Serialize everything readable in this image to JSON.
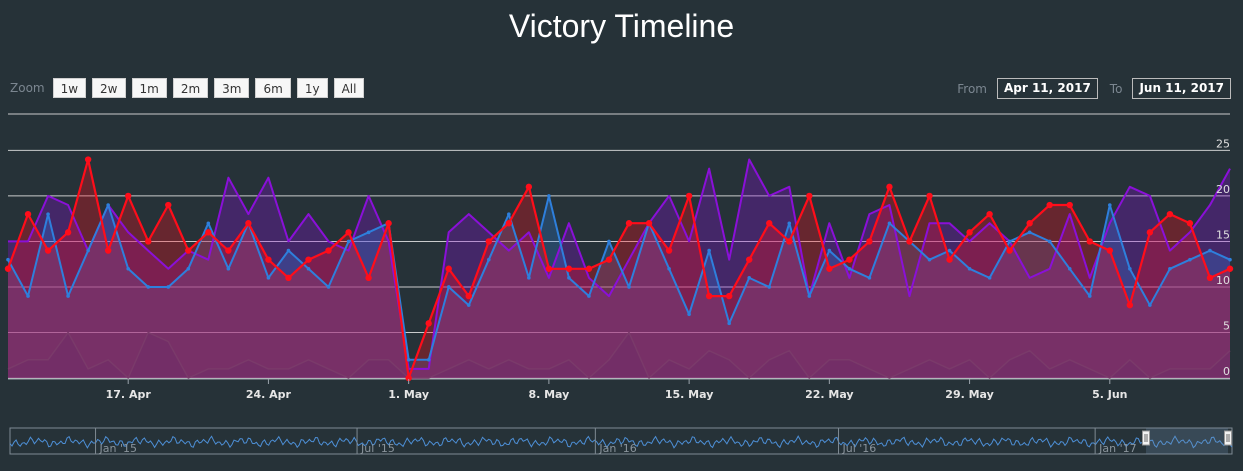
{
  "title": "Victory Timeline",
  "zoom": {
    "label": "Zoom",
    "buttons": [
      "1w",
      "2w",
      "1m",
      "2m",
      "3m",
      "6m",
      "1y",
      "All"
    ]
  },
  "range": {
    "from_label": "From",
    "from_value": "Apr 11, 2017",
    "to_label": "To",
    "to_value": "Jun 11, 2017"
  },
  "navigator": {
    "labels": [
      "Jan '15",
      "Jul '15",
      "Jan '16",
      "Jul '16",
      "Jan '17"
    ]
  },
  "colors": {
    "background": "#263238",
    "red": "#ff0d1a",
    "purple": "#8a10d8",
    "blue": "#2e7fdc",
    "low": "#7a3a6a",
    "fill": "#6b2c68",
    "grid": "#e6e6e6"
  },
  "chart_data": {
    "type": "area",
    "x_start": "2017-04-11",
    "x_end": "2017-06-11",
    "x_tick_labels": [
      "17. Apr",
      "24. Apr",
      "1. May",
      "8. May",
      "15. May",
      "22. May",
      "29. May",
      "5. Jun"
    ],
    "x_tick_dates": [
      "2017-04-17",
      "2017-04-24",
      "2017-05-01",
      "2017-05-08",
      "2017-05-15",
      "2017-05-22",
      "2017-05-29",
      "2017-06-05"
    ],
    "y_ticks": [
      0,
      5,
      10,
      15,
      20,
      25
    ],
    "ylim": [
      0,
      29
    ],
    "grid": true,
    "series": [
      {
        "color_key": "purple",
        "dates": [
          "2017-04-11",
          "2017-04-12",
          "2017-04-13",
          "2017-04-14",
          "2017-04-15",
          "2017-04-16",
          "2017-04-17",
          "2017-04-18",
          "2017-04-19",
          "2017-04-20",
          "2017-04-21",
          "2017-04-22",
          "2017-04-23",
          "2017-04-24",
          "2017-04-25",
          "2017-04-26",
          "2017-04-27",
          "2017-04-28",
          "2017-04-29",
          "2017-04-30",
          "2017-05-01",
          "2017-05-02",
          "2017-05-03",
          "2017-05-04",
          "2017-05-05",
          "2017-05-06",
          "2017-05-07",
          "2017-05-08",
          "2017-05-09",
          "2017-05-10",
          "2017-05-11",
          "2017-05-12",
          "2017-05-13",
          "2017-05-14",
          "2017-05-15",
          "2017-05-16",
          "2017-05-17",
          "2017-05-18",
          "2017-05-19",
          "2017-05-20",
          "2017-05-21",
          "2017-05-22",
          "2017-05-23",
          "2017-05-24",
          "2017-05-25",
          "2017-05-26",
          "2017-05-27",
          "2017-05-28",
          "2017-05-29",
          "2017-05-30",
          "2017-05-31",
          "2017-06-01",
          "2017-06-02",
          "2017-06-03",
          "2017-06-04",
          "2017-06-05",
          "2017-06-06",
          "2017-06-07",
          "2017-06-08",
          "2017-06-09",
          "2017-06-10",
          "2017-06-11"
        ],
        "values": [
          15,
          15,
          20,
          19,
          14,
          19,
          16,
          14,
          12,
          14,
          13,
          22,
          18,
          22,
          15,
          18,
          15,
          14,
          20,
          15,
          1,
          1,
          16,
          18,
          16,
          14,
          16,
          11,
          17,
          11,
          9,
          13,
          17,
          20,
          15,
          23,
          13,
          24,
          20,
          21,
          9,
          17,
          11,
          18,
          19,
          9,
          17,
          17,
          15,
          17,
          15,
          11,
          12,
          18,
          11,
          17,
          21,
          20,
          14,
          16,
          19,
          23
        ]
      },
      {
        "color_key": "blue",
        "dates": [
          "2017-04-11",
          "2017-04-12",
          "2017-04-13",
          "2017-04-14",
          "2017-04-15",
          "2017-04-16",
          "2017-04-17",
          "2017-04-18",
          "2017-04-19",
          "2017-04-20",
          "2017-04-21",
          "2017-04-22",
          "2017-04-23",
          "2017-04-24",
          "2017-04-25",
          "2017-04-26",
          "2017-04-27",
          "2017-04-28",
          "2017-04-29",
          "2017-04-30",
          "2017-05-01",
          "2017-05-02",
          "2017-05-03",
          "2017-05-04",
          "2017-05-05",
          "2017-05-06",
          "2017-05-07",
          "2017-05-08",
          "2017-05-09",
          "2017-05-10",
          "2017-05-11",
          "2017-05-12",
          "2017-05-13",
          "2017-05-14",
          "2017-05-15",
          "2017-05-16",
          "2017-05-17",
          "2017-05-18",
          "2017-05-19",
          "2017-05-20",
          "2017-05-21",
          "2017-05-22",
          "2017-05-23",
          "2017-05-24",
          "2017-05-25",
          "2017-05-26",
          "2017-05-27",
          "2017-05-28",
          "2017-05-29",
          "2017-05-30",
          "2017-05-31",
          "2017-06-01",
          "2017-06-02",
          "2017-06-03",
          "2017-06-04",
          "2017-06-05",
          "2017-06-06",
          "2017-06-07",
          "2017-06-08",
          "2017-06-09",
          "2017-06-10",
          "2017-06-11"
        ],
        "values": [
          13,
          9,
          18,
          9,
          14,
          19,
          12,
          10,
          10,
          12,
          17,
          12,
          17,
          11,
          14,
          12,
          10,
          15,
          16,
          17,
          2,
          2,
          10,
          8,
          13,
          18,
          11,
          20,
          11,
          9,
          15,
          10,
          17,
          12,
          7,
          14,
          6,
          11,
          10,
          17,
          9,
          14,
          12,
          11,
          17,
          15,
          13,
          14,
          12,
          11,
          15,
          16,
          15,
          12,
          9,
          19,
          12,
          8,
          12,
          13,
          14,
          13
        ]
      },
      {
        "color_key": "red",
        "dates": [
          "2017-04-11",
          "2017-04-12",
          "2017-04-13",
          "2017-04-14",
          "2017-04-15",
          "2017-04-16",
          "2017-04-17",
          "2017-04-18",
          "2017-04-19",
          "2017-04-20",
          "2017-04-21",
          "2017-04-22",
          "2017-04-23",
          "2017-04-24",
          "2017-04-25",
          "2017-04-26",
          "2017-04-27",
          "2017-04-28",
          "2017-04-29",
          "2017-04-30",
          "2017-05-01",
          "2017-05-02",
          "2017-05-03",
          "2017-05-04",
          "2017-05-05",
          "2017-05-06",
          "2017-05-07",
          "2017-05-08",
          "2017-05-09",
          "2017-05-10",
          "2017-05-11",
          "2017-05-12",
          "2017-05-13",
          "2017-05-14",
          "2017-05-15",
          "2017-05-16",
          "2017-05-17",
          "2017-05-18",
          "2017-05-19",
          "2017-05-20",
          "2017-05-21",
          "2017-05-22",
          "2017-05-23",
          "2017-05-24",
          "2017-05-25",
          "2017-05-26",
          "2017-05-27",
          "2017-05-28",
          "2017-05-29",
          "2017-05-30",
          "2017-05-31",
          "2017-06-01",
          "2017-06-02",
          "2017-06-03",
          "2017-06-04",
          "2017-06-05",
          "2017-06-06",
          "2017-06-07",
          "2017-06-08",
          "2017-06-09",
          "2017-06-10",
          "2017-06-11"
        ],
        "values": [
          12,
          18,
          14,
          16,
          24,
          14,
          20,
          15,
          19,
          14,
          16,
          14,
          17,
          13,
          11,
          13,
          14,
          16,
          11,
          17,
          0,
          6,
          12,
          9,
          15,
          17,
          21,
          12,
          12,
          12,
          13,
          17,
          17,
          14,
          20,
          9,
          9,
          13,
          17,
          15,
          20,
          12,
          13,
          15,
          21,
          15,
          20,
          13,
          16,
          18,
          14,
          17,
          19,
          19,
          15,
          14,
          8,
          16,
          18,
          17,
          11,
          12
        ]
      },
      {
        "color_key": "low",
        "dates": [
          "2017-04-11",
          "2017-04-12",
          "2017-04-13",
          "2017-04-14",
          "2017-04-15",
          "2017-04-16",
          "2017-04-17",
          "2017-04-18",
          "2017-04-19",
          "2017-04-20",
          "2017-04-21",
          "2017-04-22",
          "2017-04-23",
          "2017-04-24",
          "2017-04-25",
          "2017-04-26",
          "2017-04-27",
          "2017-04-28",
          "2017-04-29",
          "2017-04-30",
          "2017-05-01",
          "2017-05-02",
          "2017-05-03",
          "2017-05-04",
          "2017-05-05",
          "2017-05-06",
          "2017-05-07",
          "2017-05-08",
          "2017-05-09",
          "2017-05-10",
          "2017-05-11",
          "2017-05-12",
          "2017-05-13",
          "2017-05-14",
          "2017-05-15",
          "2017-05-16",
          "2017-05-17",
          "2017-05-18",
          "2017-05-19",
          "2017-05-20",
          "2017-05-21",
          "2017-05-22",
          "2017-05-23",
          "2017-05-24",
          "2017-05-25",
          "2017-05-26",
          "2017-05-27",
          "2017-05-28",
          "2017-05-29",
          "2017-05-30",
          "2017-05-31",
          "2017-06-01",
          "2017-06-02",
          "2017-06-03",
          "2017-06-04",
          "2017-06-05",
          "2017-06-06",
          "2017-06-07",
          "2017-06-08",
          "2017-06-09",
          "2017-06-10",
          "2017-06-11"
        ],
        "values": [
          1,
          2,
          2,
          5,
          1,
          2,
          0,
          5,
          4,
          0,
          1,
          1,
          2,
          1,
          1,
          2,
          1,
          0,
          2,
          2,
          0,
          0,
          1,
          2,
          1,
          2,
          1,
          1,
          2,
          0,
          2,
          5,
          0,
          2,
          1,
          3,
          2,
          0,
          2,
          3,
          0,
          2,
          2,
          1,
          0,
          1,
          2,
          1,
          2,
          0,
          2,
          3,
          1,
          2,
          1,
          0,
          2,
          0,
          1,
          1,
          1,
          3
        ]
      }
    ]
  }
}
